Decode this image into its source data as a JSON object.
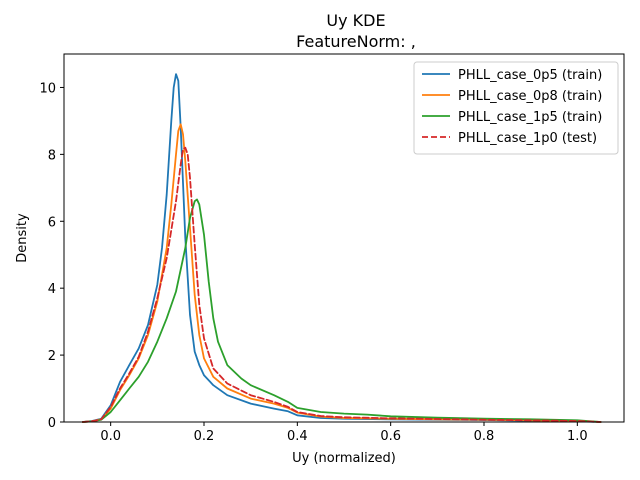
{
  "chart_data": {
    "type": "line",
    "title": "Uy KDE",
    "subtitle": "FeatureNorm: ,",
    "xlabel": "Uy (normalized)",
    "ylabel": "Density",
    "xlim": [
      -0.1,
      1.1
    ],
    "ylim": [
      0,
      11
    ],
    "xticks": [
      0.0,
      0.2,
      0.4,
      0.6,
      0.8,
      1.0
    ],
    "xtick_labels": [
      "0.0",
      "0.2",
      "0.4",
      "0.6",
      "0.8",
      "1.0"
    ],
    "yticks": [
      0,
      2,
      4,
      6,
      8,
      10
    ],
    "ytick_labels": [
      "0",
      "2",
      "4",
      "6",
      "8",
      "10"
    ],
    "grid": false,
    "legend_position": "top-right",
    "series": [
      {
        "name": "PHLL_case_0p5 (train)",
        "color": "#1f77b4",
        "dash": "solid",
        "x": [
          -0.06,
          -0.04,
          -0.02,
          0.0,
          0.02,
          0.04,
          0.06,
          0.08,
          0.1,
          0.11,
          0.12,
          0.125,
          0.13,
          0.135,
          0.14,
          0.145,
          0.15,
          0.16,
          0.17,
          0.18,
          0.19,
          0.2,
          0.22,
          0.25,
          0.3,
          0.35,
          0.38,
          0.4,
          0.45,
          0.5,
          0.6,
          0.7,
          0.8,
          0.9,
          1.0,
          1.05
        ],
        "y": [
          0.0,
          0.03,
          0.1,
          0.5,
          1.2,
          1.7,
          2.2,
          2.9,
          4.1,
          5.2,
          6.8,
          7.9,
          9.0,
          10.0,
          10.4,
          10.2,
          8.8,
          5.5,
          3.2,
          2.1,
          1.7,
          1.4,
          1.1,
          0.8,
          0.55,
          0.4,
          0.32,
          0.2,
          0.12,
          0.1,
          0.08,
          0.07,
          0.06,
          0.04,
          0.02,
          0.0
        ]
      },
      {
        "name": "PHLL_case_0p8 (train)",
        "color": "#ff7f0e",
        "dash": "solid",
        "x": [
          -0.06,
          -0.04,
          -0.02,
          0.0,
          0.02,
          0.04,
          0.06,
          0.08,
          0.1,
          0.12,
          0.13,
          0.14,
          0.145,
          0.15,
          0.155,
          0.16,
          0.17,
          0.18,
          0.19,
          0.2,
          0.22,
          0.25,
          0.3,
          0.35,
          0.38,
          0.4,
          0.45,
          0.5,
          0.6,
          0.7,
          0.8,
          0.9,
          1.0,
          1.05
        ],
        "y": [
          0.0,
          0.02,
          0.08,
          0.4,
          0.95,
          1.4,
          1.9,
          2.6,
          3.6,
          5.2,
          6.5,
          8.0,
          8.7,
          8.9,
          8.6,
          7.8,
          5.8,
          3.8,
          2.6,
          1.9,
          1.35,
          1.0,
          0.7,
          0.55,
          0.42,
          0.28,
          0.16,
          0.12,
          0.1,
          0.08,
          0.07,
          0.05,
          0.03,
          0.0
        ]
      },
      {
        "name": "PHLL_case_1p5 (train)",
        "color": "#2ca02c",
        "dash": "solid",
        "x": [
          -0.06,
          -0.04,
          -0.02,
          0.0,
          0.02,
          0.04,
          0.06,
          0.08,
          0.1,
          0.12,
          0.14,
          0.16,
          0.17,
          0.18,
          0.185,
          0.19,
          0.2,
          0.21,
          0.22,
          0.23,
          0.25,
          0.28,
          0.3,
          0.35,
          0.38,
          0.4,
          0.45,
          0.5,
          0.55,
          0.6,
          0.7,
          0.8,
          0.9,
          1.0,
          1.05
        ],
        "y": [
          0.0,
          0.02,
          0.07,
          0.3,
          0.65,
          1.0,
          1.35,
          1.8,
          2.4,
          3.1,
          3.9,
          5.2,
          6.1,
          6.6,
          6.65,
          6.5,
          5.6,
          4.2,
          3.1,
          2.4,
          1.7,
          1.3,
          1.1,
          0.8,
          0.6,
          0.42,
          0.3,
          0.25,
          0.22,
          0.17,
          0.13,
          0.1,
          0.08,
          0.05,
          0.0
        ]
      },
      {
        "name": "PHLL_case_1p0 (test)",
        "color": "#d62728",
        "dash": "dashed",
        "x": [
          -0.06,
          -0.04,
          -0.02,
          0.0,
          0.02,
          0.04,
          0.06,
          0.08,
          0.1,
          0.12,
          0.14,
          0.15,
          0.155,
          0.16,
          0.165,
          0.17,
          0.18,
          0.19,
          0.2,
          0.22,
          0.25,
          0.3,
          0.35,
          0.38,
          0.4,
          0.45,
          0.5,
          0.6,
          0.7,
          0.8,
          0.9,
          1.0,
          1.05
        ],
        "y": [
          0.0,
          0.02,
          0.08,
          0.45,
          1.0,
          1.45,
          1.95,
          2.7,
          3.7,
          4.9,
          6.6,
          7.7,
          8.15,
          8.2,
          8.0,
          7.3,
          5.3,
          3.5,
          2.5,
          1.6,
          1.15,
          0.8,
          0.6,
          0.45,
          0.3,
          0.18,
          0.14,
          0.11,
          0.09,
          0.07,
          0.05,
          0.03,
          0.0
        ]
      }
    ]
  }
}
